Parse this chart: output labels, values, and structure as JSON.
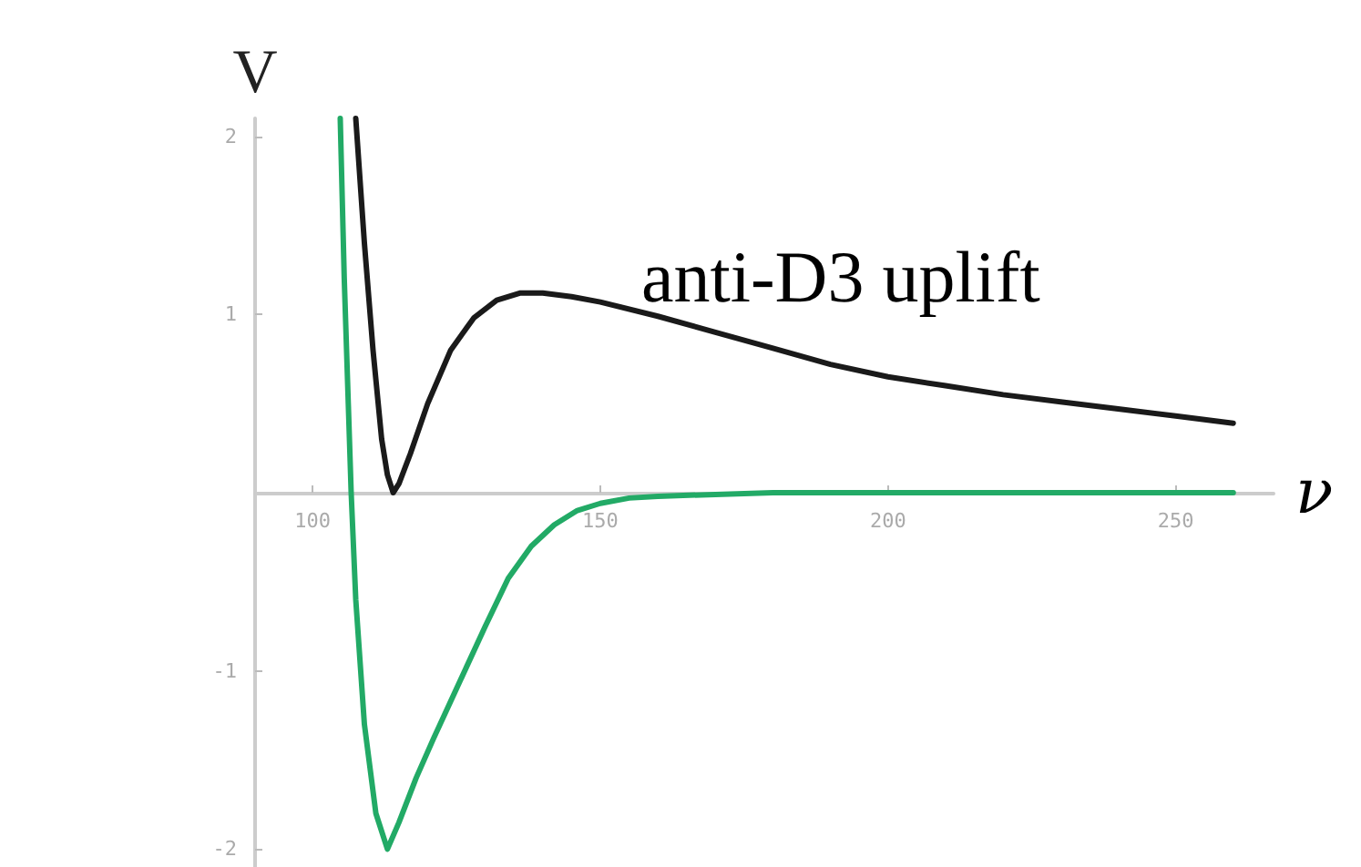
{
  "chart_data": {
    "type": "line",
    "xlabel": "ν",
    "ylabel": "V",
    "annotations": [
      "anti-D3 uplift"
    ],
    "xlim": [
      90,
      267
    ],
    "xticks": [
      100,
      150,
      200,
      250
    ],
    "ylim": [
      -2.1,
      2.1
    ],
    "yticks": [
      -2,
      -1,
      1,
      2
    ],
    "grid": false,
    "marker": "none",
    "line_style": "solid",
    "series": [
      {
        "color": "#1a1a1a",
        "x": [
          107.5,
          109,
          110.5,
          112,
          113,
          114,
          115,
          117,
          120,
          124,
          128,
          132,
          136,
          140,
          145,
          150,
          160,
          170,
          180,
          190,
          200,
          210,
          220,
          230,
          240,
          250,
          260
        ],
        "values": [
          2.1,
          1.4,
          0.8,
          0.3,
          0.1,
          0,
          0.05,
          0.22,
          0.5,
          0.8,
          0.98,
          1.08,
          1.12,
          1.12,
          1.1,
          1.07,
          0.99,
          0.9,
          0.81,
          0.72,
          0.65,
          0.6,
          0.55,
          0.51,
          0.47,
          0.43,
          0.39
        ]
      },
      {
        "color": "#22aa66",
        "x": [
          104.8,
          105.5,
          106.2,
          106.7,
          107.5,
          109,
          111,
          113,
          115,
          118,
          121,
          125,
          130,
          134,
          138,
          142,
          146,
          150,
          155,
          160,
          170,
          180,
          200,
          230,
          260
        ],
        "values": [
          2.1,
          1.2,
          0.5,
          0,
          -0.6,
          -1.3,
          -1.8,
          -2.0,
          -1.85,
          -1.6,
          -1.38,
          -1.1,
          -0.75,
          -0.48,
          -0.3,
          -0.18,
          -0.1,
          -0.06,
          -0.03,
          -0.02,
          -0.01,
          0,
          0,
          0,
          0
        ]
      }
    ]
  }
}
